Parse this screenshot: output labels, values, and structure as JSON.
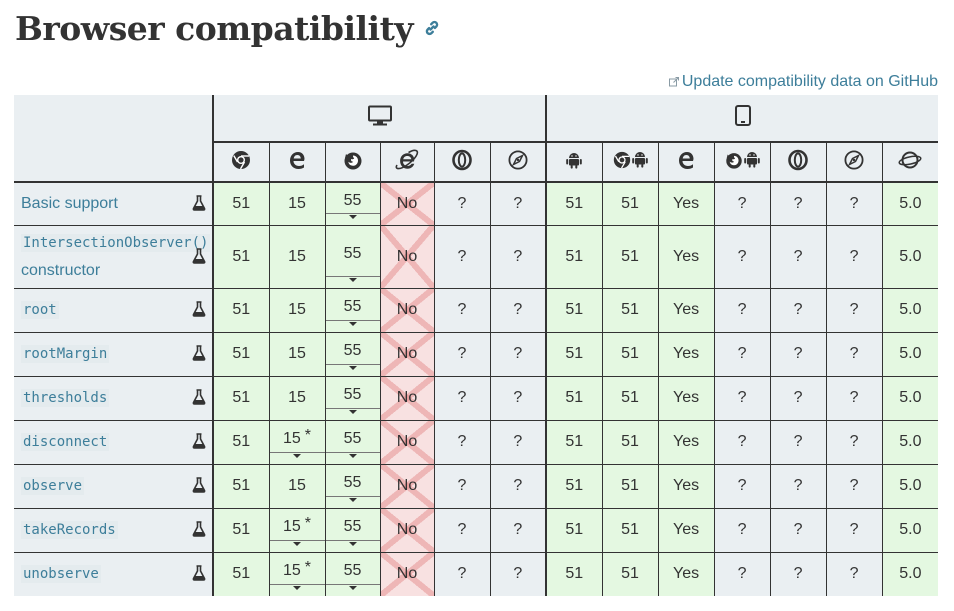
{
  "page": {
    "title": "Browser compatibility",
    "update_link": "Update compatibility data on GitHub"
  },
  "platforms": [
    {
      "name": "desktop",
      "icon": "desktop-icon",
      "span": 6
    },
    {
      "name": "mobile",
      "icon": "mobile-icon",
      "span": 7
    }
  ],
  "browsers": [
    {
      "icon": "chrome-icon"
    },
    {
      "icon": "edge-icon"
    },
    {
      "icon": "firefox-icon"
    },
    {
      "icon": "internet-explorer-icon"
    },
    {
      "icon": "opera-icon"
    },
    {
      "icon": "safari-icon"
    },
    {
      "icon": "android-webview-icon"
    },
    {
      "icon": "chrome-android-icon"
    },
    {
      "icon": "edge-mobile-icon"
    },
    {
      "icon": "firefox-android-icon"
    },
    {
      "icon": "opera-android-icon"
    },
    {
      "icon": "safari-ios-icon"
    },
    {
      "icon": "samsung-internet-icon"
    }
  ],
  "features": [
    {
      "name": "Basic support",
      "code": false,
      "cells": [
        {
          "v": "51",
          "s": "yes"
        },
        {
          "v": "15",
          "s": "yes"
        },
        {
          "v": "55",
          "s": "yes",
          "toggle": true
        },
        {
          "v": "No",
          "s": "no"
        },
        {
          "v": "?",
          "s": "unk"
        },
        {
          "v": "?",
          "s": "unk"
        },
        {
          "v": "51",
          "s": "yes"
        },
        {
          "v": "51",
          "s": "yes"
        },
        {
          "v": "Yes",
          "s": "yes"
        },
        {
          "v": "?",
          "s": "unk"
        },
        {
          "v": "?",
          "s": "unk"
        },
        {
          "v": "?",
          "s": "unk"
        },
        {
          "v": "5.0",
          "s": "yes"
        }
      ]
    },
    {
      "name": "IntersectionObserver()",
      "name2": "constructor",
      "code": "ctor",
      "cells": [
        {
          "v": "51",
          "s": "yes"
        },
        {
          "v": "15",
          "s": "yes"
        },
        {
          "v": "55",
          "s": "yes",
          "toggle": true
        },
        {
          "v": "No",
          "s": "no"
        },
        {
          "v": "?",
          "s": "unk"
        },
        {
          "v": "?",
          "s": "unk"
        },
        {
          "v": "51",
          "s": "yes"
        },
        {
          "v": "51",
          "s": "yes"
        },
        {
          "v": "Yes",
          "s": "yes"
        },
        {
          "v": "?",
          "s": "unk"
        },
        {
          "v": "?",
          "s": "unk"
        },
        {
          "v": "?",
          "s": "unk"
        },
        {
          "v": "5.0",
          "s": "yes"
        }
      ]
    },
    {
      "name": "root",
      "code": true,
      "cells": [
        {
          "v": "51",
          "s": "yes"
        },
        {
          "v": "15",
          "s": "yes"
        },
        {
          "v": "55",
          "s": "yes",
          "toggle": true
        },
        {
          "v": "No",
          "s": "no"
        },
        {
          "v": "?",
          "s": "unk"
        },
        {
          "v": "?",
          "s": "unk"
        },
        {
          "v": "51",
          "s": "yes"
        },
        {
          "v": "51",
          "s": "yes"
        },
        {
          "v": "Yes",
          "s": "yes"
        },
        {
          "v": "?",
          "s": "unk"
        },
        {
          "v": "?",
          "s": "unk"
        },
        {
          "v": "?",
          "s": "unk"
        },
        {
          "v": "5.0",
          "s": "yes"
        }
      ]
    },
    {
      "name": "rootMargin",
      "code": true,
      "cells": [
        {
          "v": "51",
          "s": "yes"
        },
        {
          "v": "15",
          "s": "yes"
        },
        {
          "v": "55",
          "s": "yes",
          "toggle": true
        },
        {
          "v": "No",
          "s": "no"
        },
        {
          "v": "?",
          "s": "unk"
        },
        {
          "v": "?",
          "s": "unk"
        },
        {
          "v": "51",
          "s": "yes"
        },
        {
          "v": "51",
          "s": "yes"
        },
        {
          "v": "Yes",
          "s": "yes"
        },
        {
          "v": "?",
          "s": "unk"
        },
        {
          "v": "?",
          "s": "unk"
        },
        {
          "v": "?",
          "s": "unk"
        },
        {
          "v": "5.0",
          "s": "yes"
        }
      ]
    },
    {
      "name": "thresholds",
      "code": true,
      "cells": [
        {
          "v": "51",
          "s": "yes"
        },
        {
          "v": "15",
          "s": "yes"
        },
        {
          "v": "55",
          "s": "yes",
          "toggle": true
        },
        {
          "v": "No",
          "s": "no"
        },
        {
          "v": "?",
          "s": "unk"
        },
        {
          "v": "?",
          "s": "unk"
        },
        {
          "v": "51",
          "s": "yes"
        },
        {
          "v": "51",
          "s": "yes"
        },
        {
          "v": "Yes",
          "s": "yes"
        },
        {
          "v": "?",
          "s": "unk"
        },
        {
          "v": "?",
          "s": "unk"
        },
        {
          "v": "?",
          "s": "unk"
        },
        {
          "v": "5.0",
          "s": "yes"
        }
      ]
    },
    {
      "name": "disconnect",
      "code": true,
      "cells": [
        {
          "v": "51",
          "s": "yes"
        },
        {
          "v": "15",
          "s": "yes",
          "note": "*",
          "toggle": true
        },
        {
          "v": "55",
          "s": "yes",
          "toggle": true
        },
        {
          "v": "No",
          "s": "no"
        },
        {
          "v": "?",
          "s": "unk"
        },
        {
          "v": "?",
          "s": "unk"
        },
        {
          "v": "51",
          "s": "yes"
        },
        {
          "v": "51",
          "s": "yes"
        },
        {
          "v": "Yes",
          "s": "yes"
        },
        {
          "v": "?",
          "s": "unk"
        },
        {
          "v": "?",
          "s": "unk"
        },
        {
          "v": "?",
          "s": "unk"
        },
        {
          "v": "5.0",
          "s": "yes"
        }
      ]
    },
    {
      "name": "observe",
      "code": true,
      "cells": [
        {
          "v": "51",
          "s": "yes"
        },
        {
          "v": "15",
          "s": "yes"
        },
        {
          "v": "55",
          "s": "yes",
          "toggle": true
        },
        {
          "v": "No",
          "s": "no"
        },
        {
          "v": "?",
          "s": "unk"
        },
        {
          "v": "?",
          "s": "unk"
        },
        {
          "v": "51",
          "s": "yes"
        },
        {
          "v": "51",
          "s": "yes"
        },
        {
          "v": "Yes",
          "s": "yes"
        },
        {
          "v": "?",
          "s": "unk"
        },
        {
          "v": "?",
          "s": "unk"
        },
        {
          "v": "?",
          "s": "unk"
        },
        {
          "v": "5.0",
          "s": "yes"
        }
      ]
    },
    {
      "name": "takeRecords",
      "code": true,
      "cells": [
        {
          "v": "51",
          "s": "yes"
        },
        {
          "v": "15",
          "s": "yes",
          "note": "*",
          "toggle": true
        },
        {
          "v": "55",
          "s": "yes",
          "toggle": true
        },
        {
          "v": "No",
          "s": "no"
        },
        {
          "v": "?",
          "s": "unk"
        },
        {
          "v": "?",
          "s": "unk"
        },
        {
          "v": "51",
          "s": "yes"
        },
        {
          "v": "51",
          "s": "yes"
        },
        {
          "v": "Yes",
          "s": "yes"
        },
        {
          "v": "?",
          "s": "unk"
        },
        {
          "v": "?",
          "s": "unk"
        },
        {
          "v": "?",
          "s": "unk"
        },
        {
          "v": "5.0",
          "s": "yes"
        }
      ]
    },
    {
      "name": "unobserve",
      "code": true,
      "cells": [
        {
          "v": "51",
          "s": "yes"
        },
        {
          "v": "15",
          "s": "yes",
          "note": "*",
          "toggle": true
        },
        {
          "v": "55",
          "s": "yes",
          "toggle": true
        },
        {
          "v": "No",
          "s": "no"
        },
        {
          "v": "?",
          "s": "unk"
        },
        {
          "v": "?",
          "s": "unk"
        },
        {
          "v": "51",
          "s": "yes"
        },
        {
          "v": "51",
          "s": "yes"
        },
        {
          "v": "Yes",
          "s": "yes"
        },
        {
          "v": "?",
          "s": "unk"
        },
        {
          "v": "?",
          "s": "unk"
        },
        {
          "v": "?",
          "s": "unk"
        },
        {
          "v": "5.0",
          "s": "yes"
        }
      ]
    }
  ],
  "colors": {
    "link": "#3d7e9a",
    "supported_bg": "#e4f8e1",
    "unsupported_bg": "#f8e1e1",
    "unknown_bg": "#eaeff2",
    "header_bg": "#eaeff2"
  }
}
